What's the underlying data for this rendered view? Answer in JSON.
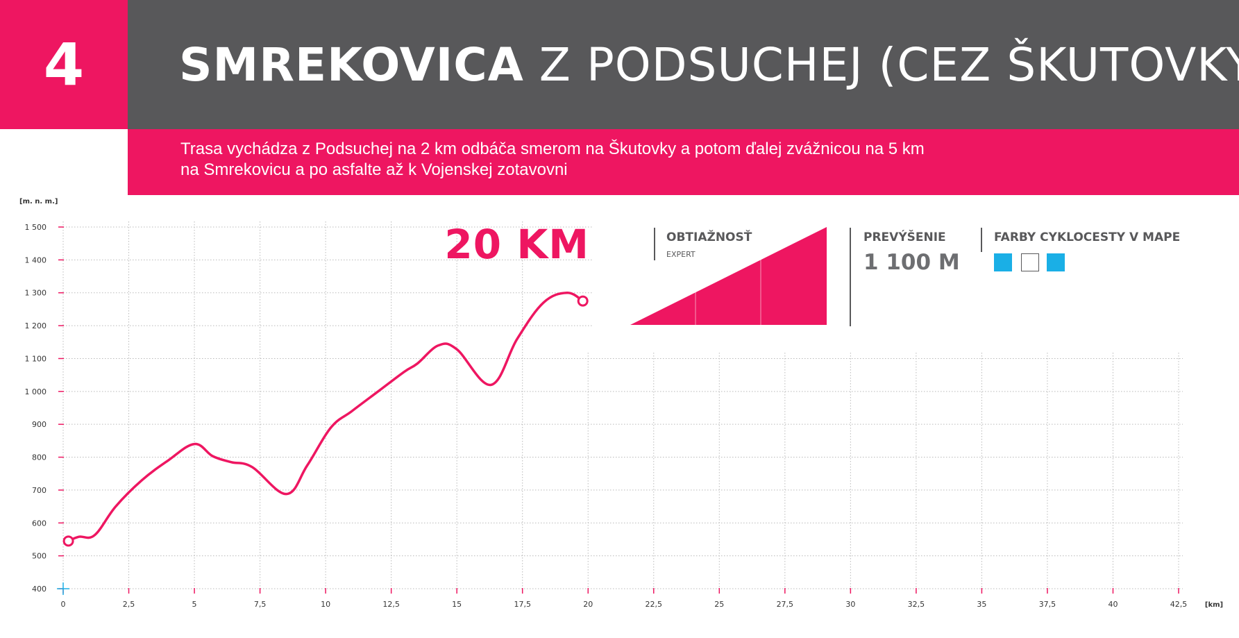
{
  "route": {
    "number": "4",
    "title_bold": "SMREKOVICA",
    "title_rest": "Z PODSUCHEJ (CEZ ŠKUTOVKY)",
    "description_line1": "Trasa vychádza z Podsuchej na 2 km odbáča smerom na Škutovky a potom ďalej zvážnicou na 5 km",
    "description_line2": "na Smrekovicu a po asfalte až k Vojenskej zotavovni"
  },
  "info": {
    "distance": "20 KM",
    "difficulty_label": "OBTIAŽNOSŤ",
    "difficulty_value": "EXPERT",
    "elevation_label": "PREVÝŠENIE",
    "elevation_value": "1 100 M",
    "colors_label": "FARBY CYKLOCESTY V MAPE",
    "trail_colors": [
      "#1aafe6",
      "#ffffff",
      "#1aafe6"
    ]
  },
  "colors": {
    "accent": "#ee1661",
    "dark": "#58585a",
    "origin_marker": "#1aafe6"
  },
  "chart_data": {
    "type": "line",
    "ylabel": "[m. n. m.]",
    "xlabel": "[km]",
    "xlim": [
      0,
      42.5
    ],
    "ylim": [
      400,
      1500
    ],
    "x_ticks": [
      "0",
      "2,5",
      "5",
      "7,5",
      "10",
      "12,5",
      "15",
      "17,5",
      "20",
      "22,5",
      "25",
      "27,5",
      "30",
      "32,5",
      "35",
      "37,5",
      "40",
      "42,5"
    ],
    "y_ticks": [
      "400",
      "500",
      "600",
      "700",
      "800",
      "900",
      "1 000",
      "1 100",
      "1 200",
      "1 300",
      "1 400",
      "1 500"
    ],
    "grid": true,
    "series": [
      {
        "x": [
          0.2,
          0.6,
          1.2,
          2.0,
          3.0,
          4.0,
          5.0,
          5.7,
          6.4,
          7.2,
          8.5,
          9.3,
          10.2,
          11.0,
          12.0,
          13.0,
          13.5,
          14.3,
          15.0,
          16.3,
          17.3,
          18.3,
          19.2,
          19.8
        ],
        "y": [
          545,
          558,
          563,
          650,
          730,
          790,
          840,
          803,
          785,
          770,
          688,
          775,
          890,
          940,
          1000,
          1060,
          1085,
          1140,
          1128,
          1020,
          1160,
          1270,
          1300,
          1275
        ]
      }
    ],
    "markers": [
      {
        "x": 0.2,
        "y": 545
      },
      {
        "x": 19.8,
        "y": 1275
      }
    ]
  }
}
